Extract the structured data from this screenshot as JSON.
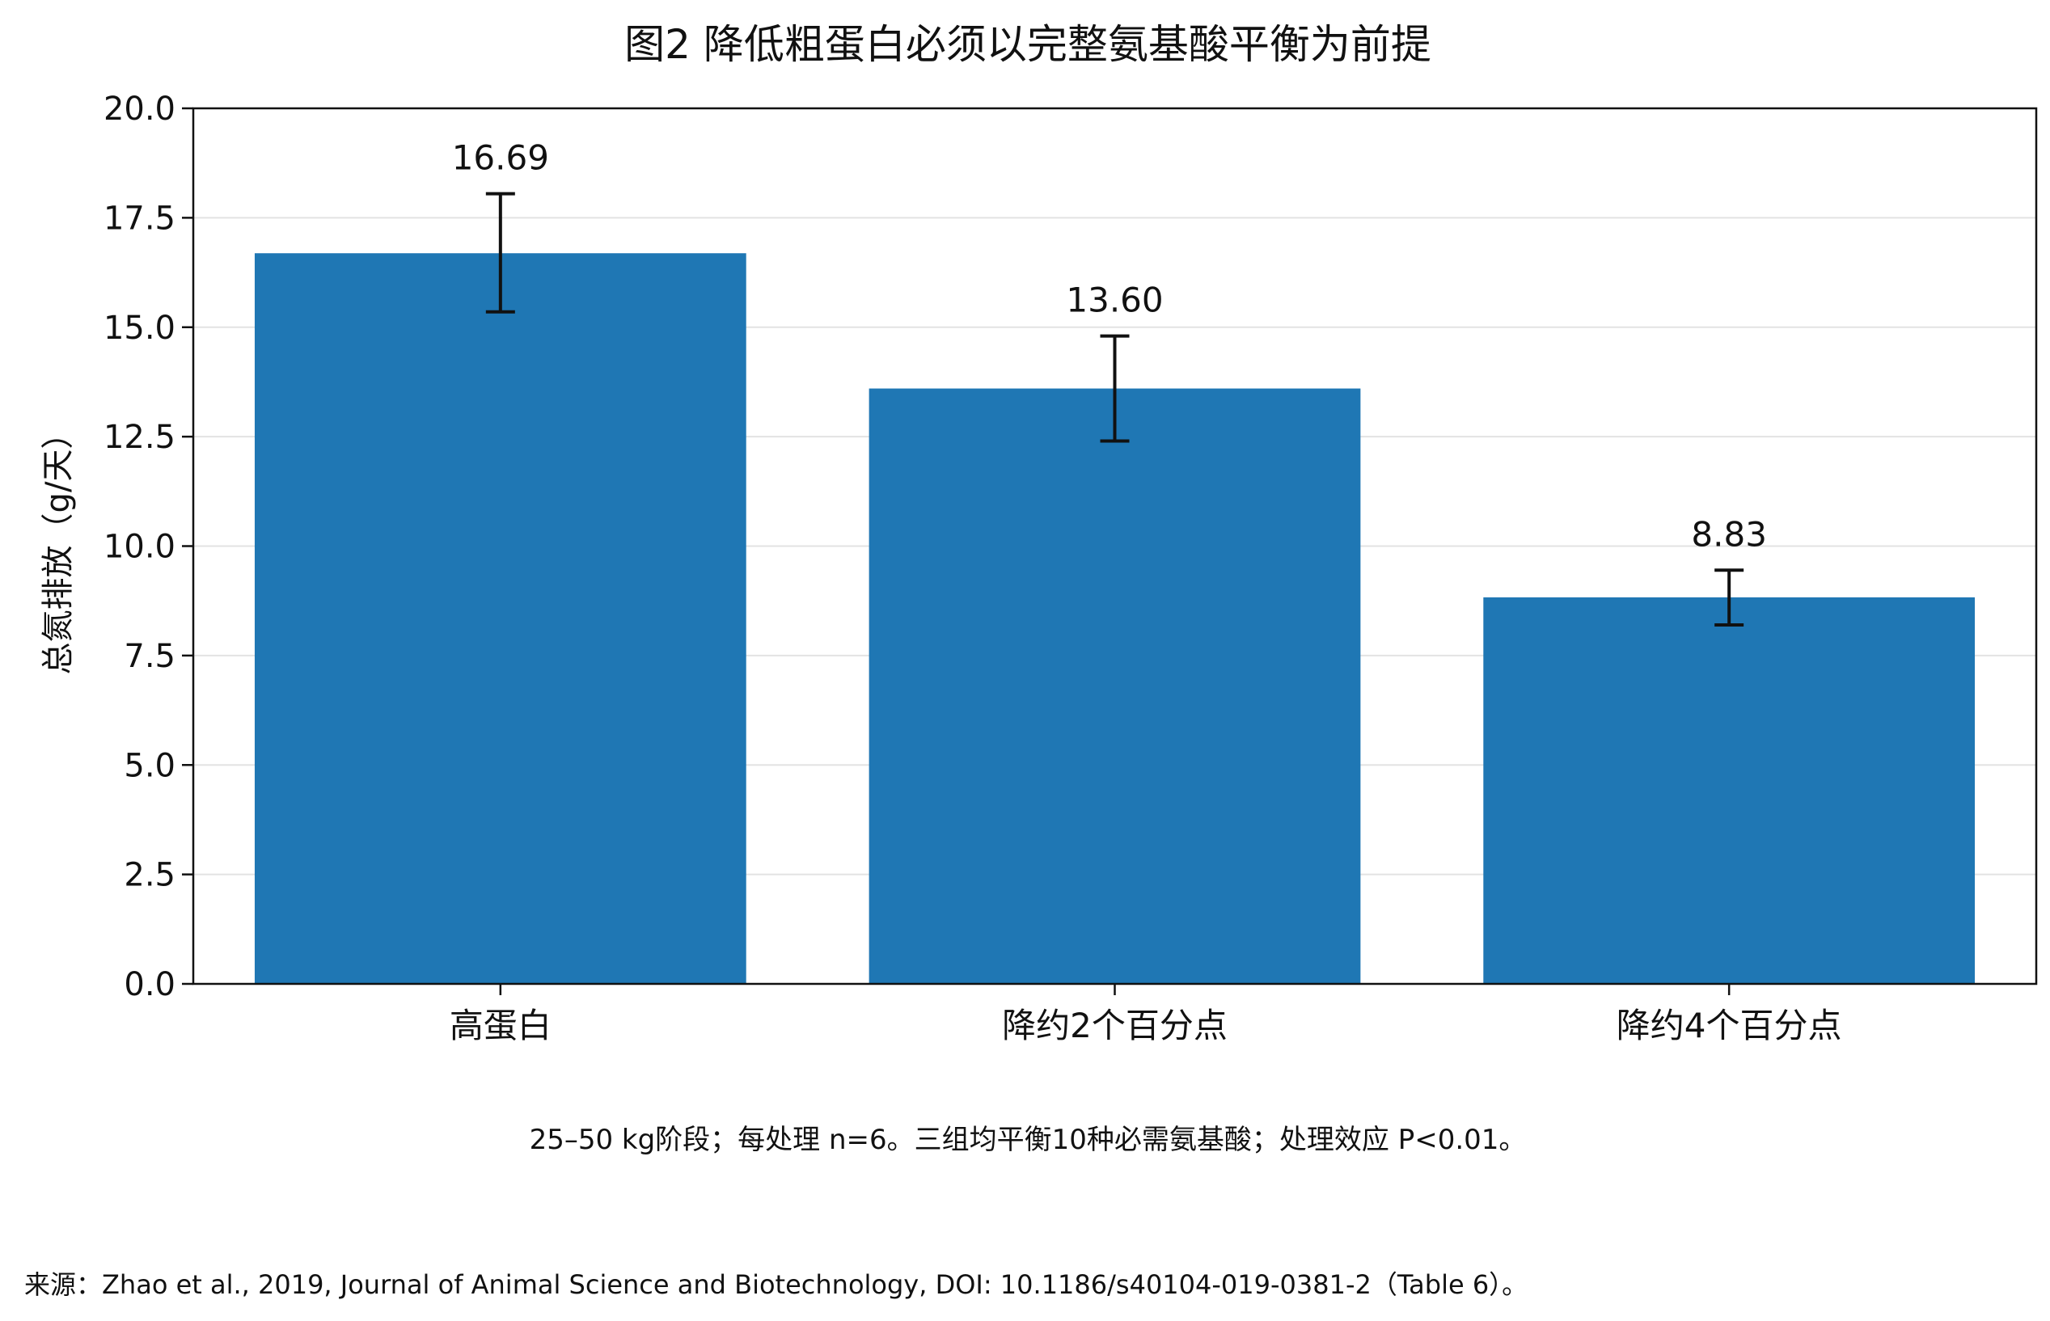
{
  "chart_data": {
    "type": "bar",
    "title": "图2  降低粗蛋白必须以完整氨基酸平衡为前提",
    "ylabel": "总氮排放（g/天）",
    "xlabel": "",
    "ylim": [
      0,
      20
    ],
    "yticks": [
      "0.0",
      "2.5",
      "5.0",
      "7.5",
      "10.0",
      "12.5",
      "15.0",
      "17.5",
      "20.0"
    ],
    "grid": "horizontal",
    "bar_color": "#1f77b4",
    "categories": [
      "高蛋白",
      "降约2个百分点",
      "降约4个百分点"
    ],
    "values": [
      16.69,
      13.6,
      8.83
    ],
    "value_labels": [
      "16.69",
      "13.60",
      "8.83"
    ],
    "error_low": [
      15.35,
      12.4,
      8.2
    ],
    "error_high": [
      18.05,
      14.8,
      9.45
    ],
    "note": "25–50 kg阶段；每处理 n=6。三组均平衡10种必需氨基酸；处理效应 P<0.01。",
    "source": "来源：Zhao et al., 2019, Journal of Animal Science and Biotechnology, DOI: 10.1186/s40104-019-0381-2（Table 6）。"
  }
}
